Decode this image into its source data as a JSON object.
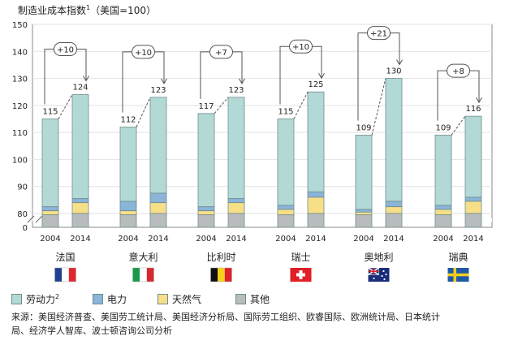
{
  "chart_data": {
    "type": "bar",
    "stacked": true,
    "title": "制造业成本指数",
    "title_sup": "1",
    "title_suffix": "（美国=100）",
    "y_ticks": [
      "150",
      "140",
      "130",
      "120",
      "110",
      "100",
      "90",
      "80",
      "0"
    ],
    "axis_break": true,
    "series": [
      {
        "name": "劳动力",
        "name_sup": "2",
        "color": "#b3d9d6"
      },
      {
        "name": "电力",
        "color": "#8ab4d8"
      },
      {
        "name": "天然气",
        "color": "#f7df88"
      },
      {
        "name": "其他",
        "color": "#b9bcbc"
      }
    ],
    "groups": [
      {
        "country": "法国",
        "flag": "fr",
        "bars": [
          {
            "year": "2004",
            "total": 115,
            "label": "115",
            "segments": {
              "other": 79.5,
              "gas": 81,
              "power": 82.5
            }
          },
          {
            "year": "2014",
            "total": 124,
            "label": "124",
            "segments": {
              "other": 80,
              "gas": 84,
              "power": 85.5
            }
          }
        ],
        "diff": "+10"
      },
      {
        "country": "意大利",
        "flag": "it",
        "bars": [
          {
            "year": "2004",
            "total": 112,
            "label": "112",
            "segments": {
              "other": 79.5,
              "gas": 81,
              "power": 84.5
            }
          },
          {
            "year": "2014",
            "total": 123,
            "label": "123",
            "segments": {
              "other": 80,
              "gas": 84,
              "power": 87.5
            }
          }
        ],
        "diff": "+10"
      },
      {
        "country": "比利时",
        "flag": "be",
        "bars": [
          {
            "year": "2004",
            "total": 117,
            "label": "117",
            "segments": {
              "other": 79.5,
              "gas": 81,
              "power": 82.5
            }
          },
          {
            "year": "2014",
            "total": 123,
            "label": "123",
            "segments": {
              "other": 80,
              "gas": 84,
              "power": 85.5
            }
          }
        ],
        "diff": "+7"
      },
      {
        "country": "瑞士",
        "flag": "ch",
        "bars": [
          {
            "year": "2004",
            "total": 115,
            "label": "115",
            "segments": {
              "other": 79.5,
              "gas": 81.5,
              "power": 83
            }
          },
          {
            "year": "2014",
            "total": 125,
            "label": "125",
            "segments": {
              "other": 80,
              "gas": 86,
              "power": 88
            }
          }
        ],
        "diff": "+10"
      },
      {
        "country": "奥地利",
        "flag": "at",
        "bars": [
          {
            "year": "2004",
            "total": 109,
            "label": "109",
            "segments": {
              "other": 79.5,
              "gas": 80.5,
              "power": 81.5
            }
          },
          {
            "year": "2014",
            "total": 130,
            "label": "130",
            "segments": {
              "other": 80,
              "gas": 82.5,
              "power": 84.5
            }
          }
        ],
        "diff": "+21"
      },
      {
        "country": "瑞典",
        "flag": "se",
        "bars": [
          {
            "year": "2004",
            "total": 109,
            "label": "109",
            "segments": {
              "other": 79.5,
              "gas": 81.5,
              "power": 83
            }
          },
          {
            "year": "2014",
            "total": 116,
            "label": "116",
            "segments": {
              "other": 80,
              "gas": 84.5,
              "power": 86
            }
          }
        ],
        "diff": "+8"
      }
    ]
  },
  "source": "来源：美国经济普查、美国劳工统计局、美国经济分析局、国际劳工组织、欧睿国际、欧洲统计局、日本统计局、经济学人智库、波士顿咨询公司分析"
}
